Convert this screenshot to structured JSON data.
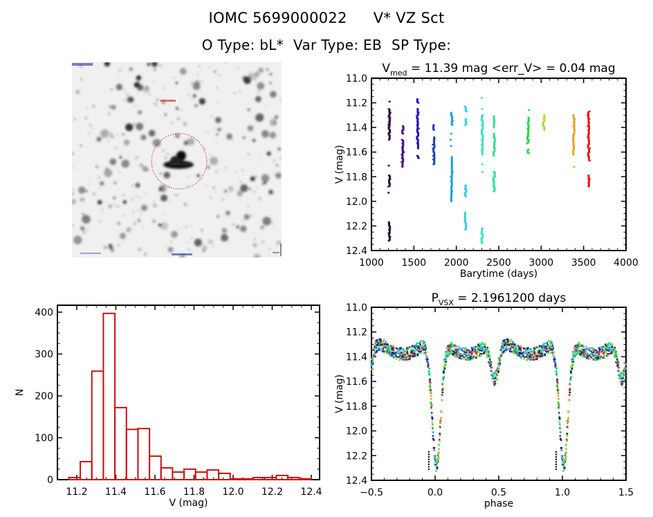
{
  "header": {
    "object_id": "IOMC 5699000022",
    "object_name": "V* VZ Sct",
    "otype_label": "O Type: bL*",
    "vartype_label": "Var Type: EB",
    "sptype_label": "SP Type:"
  },
  "finder": {
    "top_left_label": "DSS image",
    "bottom_center_label": "scale bar",
    "target_label": "target",
    "ring_color": "#cc2222",
    "label_color": "#2233aa"
  },
  "chart_data": [
    {
      "id": "lightcurve",
      "type": "scatter",
      "title_main": "V",
      "title_sub": "med",
      "title_rest": " = 11.39 mag <err_V> = 0.04 mag",
      "xlabel": "Barytime (days)",
      "ylabel": "V (mag)",
      "xlim": [
        1000,
        4000
      ],
      "ylim": [
        12.4,
        11.0
      ],
      "xticks": [
        "1000",
        "1500",
        "2000",
        "2500",
        "3000",
        "3500",
        "4000"
      ],
      "yticks": [
        "11.0",
        "11.2",
        "11.4",
        "11.6",
        "11.8",
        "12.0",
        "12.2",
        "12.4"
      ],
      "grid": false,
      "series": [
        {
          "name": "season-1",
          "t": 1210,
          "color": "#2a0a3a",
          "mags": [
            11.19,
            11.25,
            11.28,
            11.3,
            11.32,
            11.34,
            11.36,
            11.38,
            11.4,
            11.42,
            11.44,
            11.46,
            11.5,
            11.71,
            11.79,
            11.82,
            11.85,
            11.88,
            11.93,
            12.17,
            12.2,
            12.23,
            12.26,
            12.29,
            12.32
          ]
        },
        {
          "name": "season-2",
          "t": 1370,
          "color": "#4a0a7a",
          "mags": [
            11.39,
            11.42,
            11.45,
            11.5,
            11.53,
            11.56,
            11.58,
            11.6,
            11.62,
            11.65,
            11.68,
            11.72
          ]
        },
        {
          "name": "season-3",
          "t": 1545,
          "color": "#2a10b0",
          "mags": [
            11.17,
            11.2,
            11.25,
            11.28,
            11.3,
            11.33,
            11.36,
            11.38,
            11.41,
            11.44,
            11.47,
            11.5,
            11.53,
            11.57,
            11.63,
            11.65
          ]
        },
        {
          "name": "season-4",
          "t": 1735,
          "color": "#1840c8",
          "mags": [
            11.38,
            11.42,
            11.48,
            11.5,
            11.54,
            11.57,
            11.6,
            11.63,
            11.66,
            11.7
          ]
        },
        {
          "name": "season-5",
          "t": 1945,
          "color": "#20a0d8",
          "mags": [
            11.28,
            11.3,
            11.32,
            11.35,
            11.38,
            11.45,
            11.5,
            11.55,
            11.64,
            11.68,
            11.72,
            11.76,
            11.8,
            11.84,
            11.88,
            11.92,
            11.96,
            12.0
          ]
        },
        {
          "name": "season-6",
          "t": 2110,
          "color": "#30d0e0",
          "mags": [
            11.23,
            11.27,
            11.33,
            11.36,
            11.38,
            11.87,
            11.9,
            11.93,
            11.96,
            12.09,
            12.13,
            12.17,
            12.2,
            12.23
          ]
        },
        {
          "name": "season-7",
          "t": 2305,
          "color": "#40e0c0",
          "mags": [
            11.16,
            11.25,
            11.3,
            11.34,
            11.38,
            11.42,
            11.46,
            11.5,
            11.54,
            11.58,
            11.62,
            11.7,
            11.76,
            12.22,
            12.26,
            12.3,
            12.34
          ]
        },
        {
          "name": "season-8",
          "t": 2445,
          "color": "#30e090",
          "mags": [
            11.31,
            11.34,
            11.37,
            11.4,
            11.45,
            11.48,
            11.52,
            11.56,
            11.6,
            11.63,
            11.76,
            11.8,
            11.84,
            11.88,
            11.92
          ]
        },
        {
          "name": "season-9",
          "t": 2845,
          "color": "#20e040",
          "mags": [
            11.26,
            11.32,
            11.35,
            11.38,
            11.41,
            11.44,
            11.47,
            11.5,
            11.53,
            11.58,
            11.61
          ]
        },
        {
          "name": "season-10",
          "t": 3030,
          "color": "#a8e030",
          "mags": [
            11.3,
            11.33,
            11.36,
            11.39,
            11.42
          ]
        },
        {
          "name": "season-11",
          "t": 3385,
          "color": "#f0a020",
          "mags": [
            11.3,
            11.33,
            11.36,
            11.39,
            11.42,
            11.46,
            11.5,
            11.54,
            11.58,
            11.62,
            11.72
          ]
        },
        {
          "name": "season-12",
          "t": 3560,
          "color": "#e81818",
          "mags": [
            11.27,
            11.3,
            11.33,
            11.36,
            11.39,
            11.42,
            11.45,
            11.48,
            11.51,
            11.54,
            11.57,
            11.6,
            11.63,
            11.67,
            11.79,
            11.82,
            11.85,
            11.88
          ]
        }
      ]
    },
    {
      "id": "histogram",
      "type": "bar",
      "title": "",
      "xlabel": "V (mag)",
      "ylabel": "N",
      "xlim": [
        11.08,
        12.46
      ],
      "ylim": [
        0,
        420
      ],
      "xticks": [
        "11.2",
        "11.4",
        "11.6",
        "11.8",
        "12.0",
        "12.2",
        "12.4"
      ],
      "yticks": [
        "0",
        "100",
        "200",
        "300",
        "400"
      ],
      "bar_color": "#cc1111",
      "bin_start": 11.159,
      "bin_width": 0.059,
      "values": [
        5,
        43,
        259,
        397,
        172,
        120,
        122,
        56,
        28,
        18,
        25,
        18,
        23,
        15,
        2,
        2,
        5,
        5,
        10,
        5,
        2
      ]
    },
    {
      "id": "phased",
      "type": "scatter",
      "title_main": "P",
      "title_sub": "VSX",
      "title_rest": " = 2.1961200 days",
      "xlabel": "phase",
      "ylabel": "V (mag)",
      "xlim": [
        -0.5,
        1.5
      ],
      "ylim": [
        12.4,
        11.0
      ],
      "xticks": [
        "-0.5",
        "0.0",
        "0.5",
        "1.0",
        "1.5"
      ],
      "yticks": [
        "11.0",
        "11.2",
        "11.4",
        "11.6",
        "11.8",
        "12.0",
        "12.2",
        "12.4"
      ],
      "grid": false,
      "period_days": 2.19612,
      "model": {
        "base_mag": 11.33,
        "primary_depth": 1.0,
        "primary_width": 0.055,
        "secondary_depth": 0.3,
        "secondary_width": 0.045,
        "reflection_amp": 0.05,
        "scatter": 0.05
      },
      "series_colors": [
        "#2a0a3a",
        "#4a0a7a",
        "#2a10b0",
        "#1840c8",
        "#20a0d8",
        "#30d0e0",
        "#40e0c0",
        "#30e090",
        "#20e040",
        "#a8e030",
        "#f0a020",
        "#e81818"
      ]
    }
  ]
}
